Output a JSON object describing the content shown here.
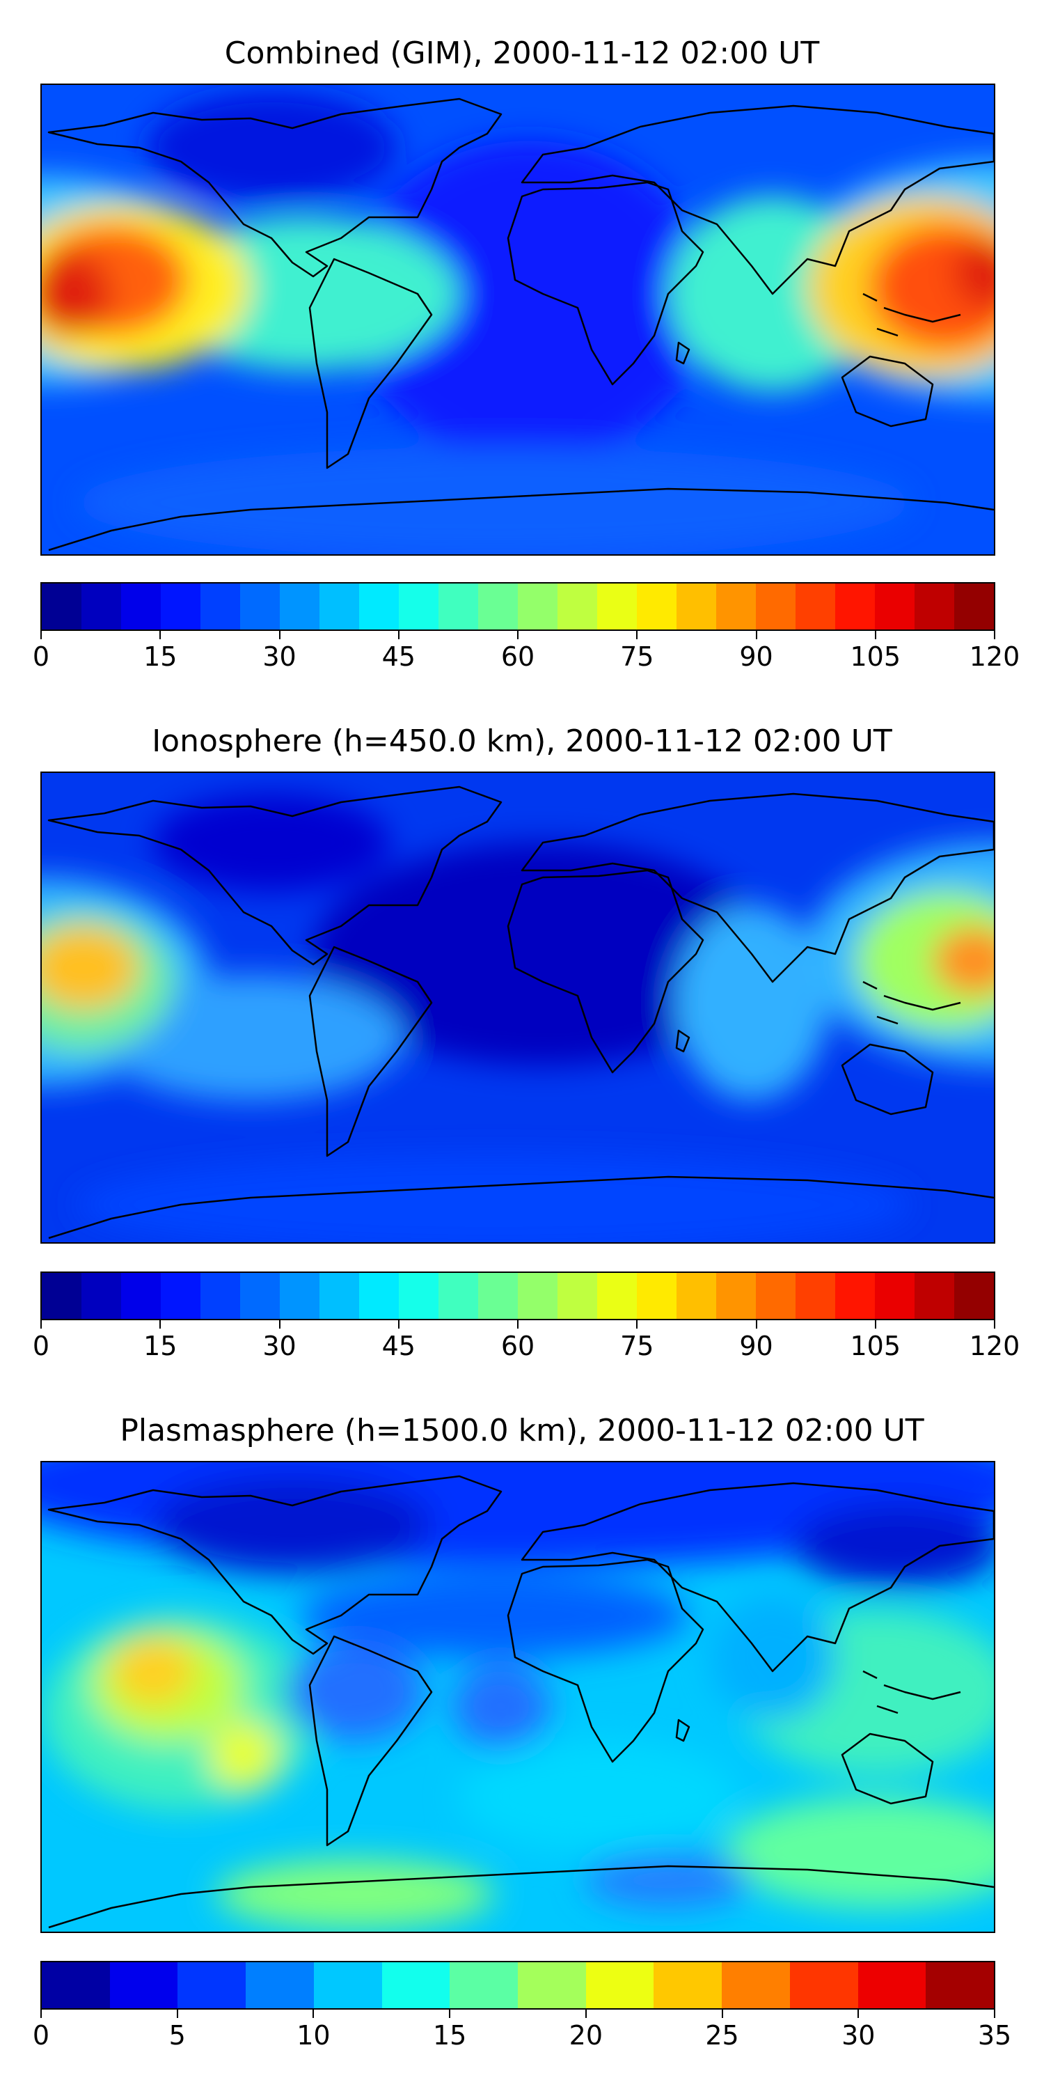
{
  "panels": [
    {
      "title": "Combined (GIM), 2000-11-12 02:00 UT",
      "colorbar": {
        "min": 0,
        "max": 120,
        "levels": 24,
        "tick_labels": [
          "0",
          "15",
          "30",
          "45",
          "60",
          "75",
          "90",
          "105",
          "120"
        ]
      }
    },
    {
      "title": "Ionosphere  (h=450.0 km), 2000-11-12 02:00 UT",
      "colorbar": {
        "min": 0,
        "max": 120,
        "levels": 24,
        "tick_labels": [
          "0",
          "15",
          "30",
          "45",
          "60",
          "75",
          "90",
          "105",
          "120"
        ]
      }
    },
    {
      "title": "Plasmasphere (h=1500.0 km), 2000-11-12 02:00 UT",
      "colorbar": {
        "min": 0,
        "max": 35,
        "levels": 14,
        "tick_labels": [
          "0",
          "5",
          "10",
          "15",
          "20",
          "25",
          "30",
          "35"
        ]
      }
    }
  ],
  "colormap": [
    "#00007f",
    "#0000ff",
    "#007fff",
    "#00ffff",
    "#7fff7f",
    "#ffff00",
    "#ff7f00",
    "#ff0000",
    "#7f0000"
  ],
  "coastline_color": "#000000",
  "icons": [
    "world-map"
  ]
}
